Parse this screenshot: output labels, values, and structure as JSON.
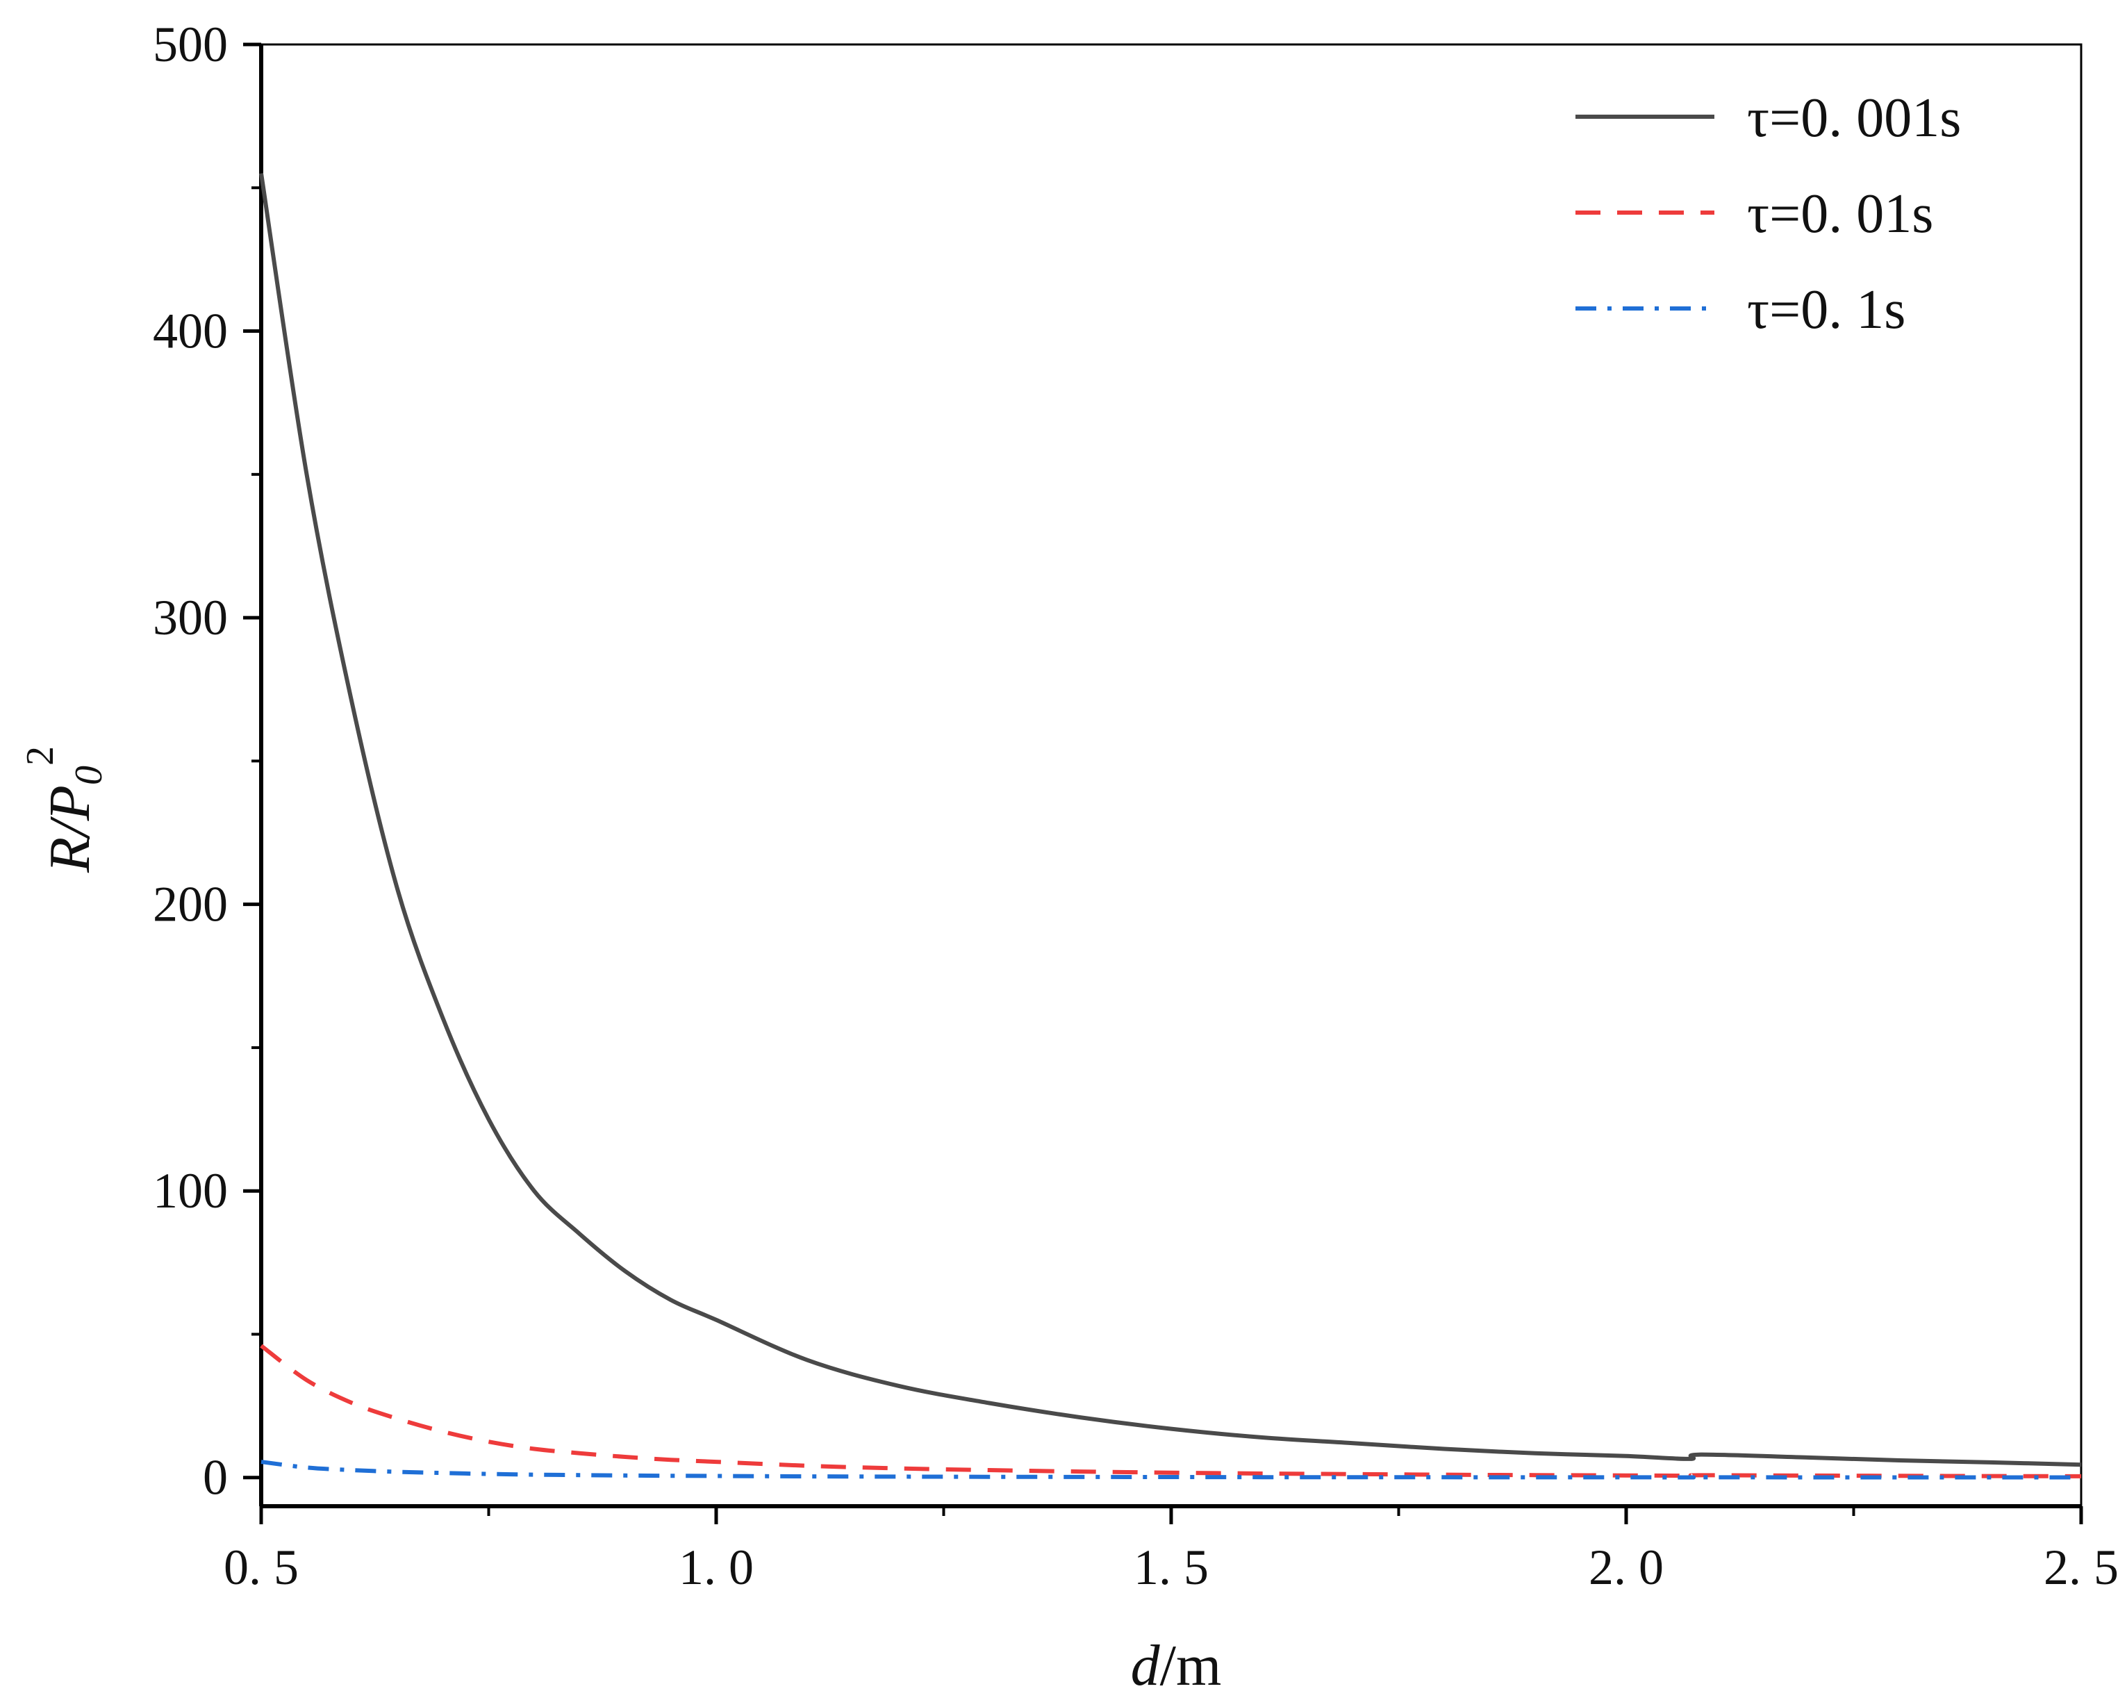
{
  "chart_data": {
    "type": "line",
    "title": "",
    "xlabel_italic": "d",
    "xlabel_unit": "/m",
    "ylabel_main": "R/P",
    "ylabel_sub": "0",
    "ylabel_sup": "2",
    "xlim": [
      0.5,
      2.5
    ],
    "ylim": [
      -10,
      500
    ],
    "xticks": [
      0.5,
      1.0,
      1.5,
      2.0,
      2.5
    ],
    "xtick_labels": [
      "0. 5",
      "1. 0",
      "1. 5",
      "2. 0",
      "2. 5"
    ],
    "yticks": [
      0,
      100,
      200,
      300,
      400,
      500
    ],
    "ytick_labels": [
      "0",
      "100",
      "200",
      "300",
      "400",
      "500"
    ],
    "grid": false,
    "legend_position": "top-right",
    "x": [
      0.5,
      0.55,
      0.6,
      0.65,
      0.7,
      0.75,
      0.8,
      0.85,
      0.9,
      0.95,
      1.0,
      1.1,
      1.2,
      1.3,
      1.4,
      1.5,
      1.6,
      1.7,
      1.8,
      1.9,
      2.0,
      2.07,
      2.08,
      2.2,
      2.3,
      2.4,
      2.5
    ],
    "series": [
      {
        "name": "τ=0. 001s",
        "color": "#4a4a4a",
        "dash": "solid",
        "values": [
          455,
          350,
          270,
          205,
          160,
          125,
          100,
          85,
          72,
          62,
          55,
          41,
          32,
          26,
          21,
          17,
          14,
          12,
          10,
          8.5,
          7.5,
          6.5,
          8,
          7,
          6,
          5.3,
          4.5
        ]
      },
      {
        "name": "τ=0. 01s",
        "color": "#ee3b3b",
        "dash": "dashed",
        "values": [
          46,
          34,
          26,
          20.5,
          16,
          12.5,
          10,
          8.5,
          7.2,
          6.2,
          5.5,
          4.1,
          3.2,
          2.6,
          2.1,
          1.7,
          1.4,
          1.2,
          1.0,
          0.85,
          0.75,
          0.65,
          0.8,
          0.7,
          0.6,
          0.53,
          0.45
        ]
      },
      {
        "name": "τ=0. 1s",
        "color": "#1f6fd6",
        "dash": "dashdot",
        "values": [
          5.5,
          3.5,
          2.6,
          2.0,
          1.6,
          1.25,
          1.0,
          0.85,
          0.72,
          0.62,
          0.55,
          0.41,
          0.32,
          0.26,
          0.21,
          0.17,
          0.14,
          0.12,
          0.1,
          0.09,
          0.08,
          0.07,
          0.08,
          0.07,
          0.06,
          0.05,
          0.05
        ]
      }
    ]
  }
}
